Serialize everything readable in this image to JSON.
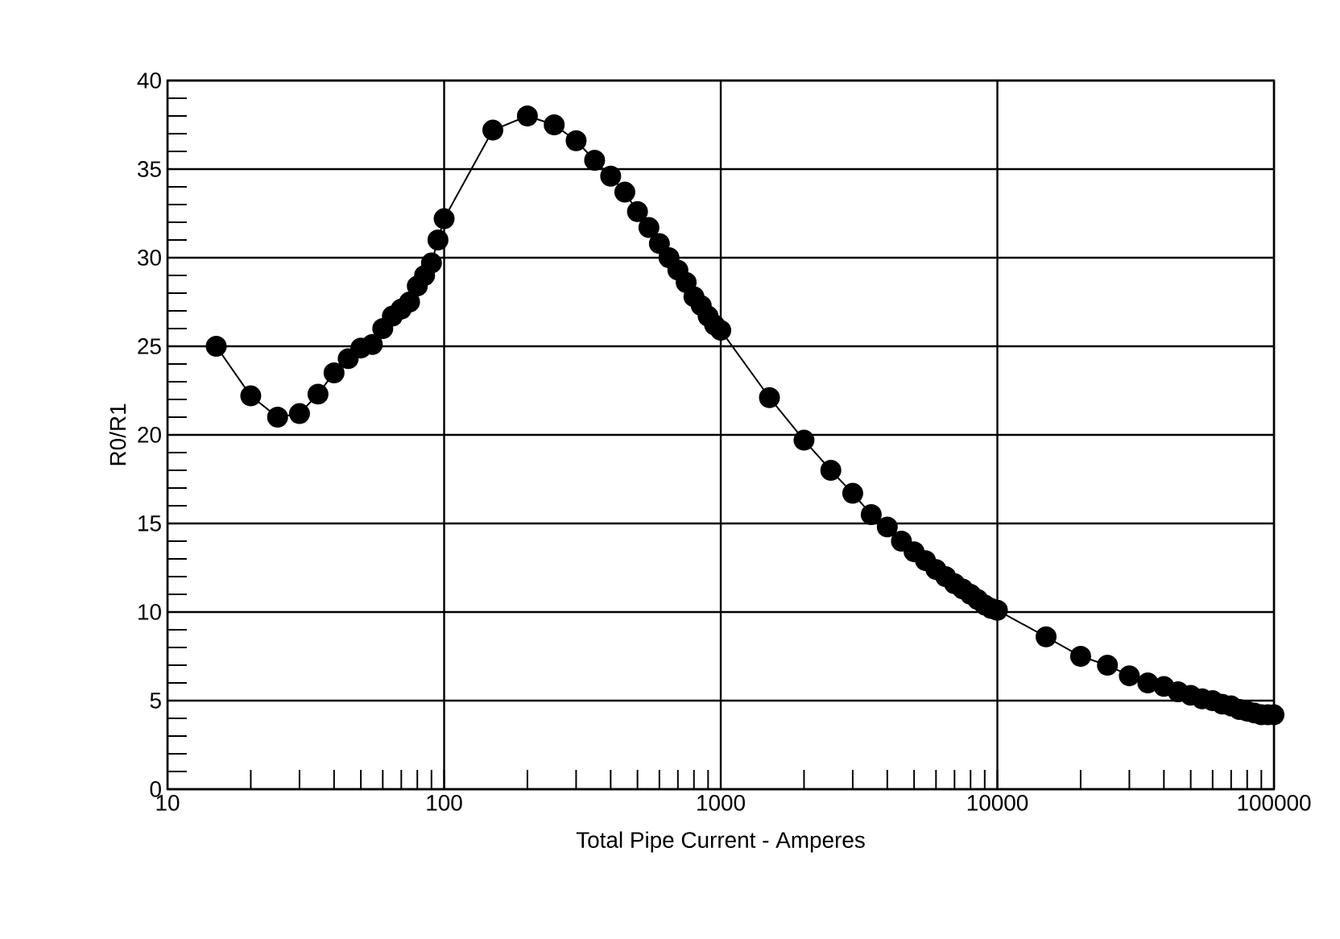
{
  "chart_data": {
    "type": "line",
    "xlabel": "Total Pipe Current - Amperes",
    "ylabel": "R0/R1",
    "log": "x",
    "grid": true,
    "marker": "circle",
    "line_style": "solid",
    "xlim": [
      10,
      100000
    ],
    "xticks": [
      10,
      100,
      1000,
      10000,
      100000
    ],
    "ylim": [
      0,
      40
    ],
    "yticks": [
      0,
      5,
      10,
      15,
      20,
      25,
      30,
      35,
      40
    ],
    "series": [
      {
        "color": "#000000",
        "x": [
          15,
          20,
          25,
          30,
          35,
          40,
          45,
          50,
          55,
          60,
          65,
          70,
          75,
          80,
          85,
          90,
          95,
          100,
          150,
          200,
          250,
          300,
          350,
          400,
          450,
          500,
          550,
          600,
          650,
          700,
          750,
          800,
          850,
          900,
          950,
          1000,
          1500,
          2000,
          2500,
          3000,
          3500,
          4000,
          4500,
          5000,
          5500,
          6000,
          6500,
          7000,
          7500,
          8000,
          8500,
          9000,
          9500,
          10000,
          15000,
          20000,
          25000,
          30000,
          35000,
          40000,
          45000,
          50000,
          55000,
          60000,
          65000,
          70000,
          75000,
          80000,
          85000,
          90000,
          95000,
          100000
        ],
        "values": [
          25,
          22.2,
          21,
          21.2,
          22.3,
          23.5,
          24.3,
          24.9,
          25.1,
          26,
          26.7,
          27.1,
          27.5,
          28.4,
          29,
          29.7,
          31,
          32.2,
          37.2,
          38,
          37.5,
          36.6,
          35.5,
          34.6,
          33.7,
          32.6,
          31.7,
          30.8,
          30,
          29.3,
          28.6,
          27.8,
          27.3,
          26.7,
          26.2,
          25.9,
          22.1,
          19.7,
          18,
          16.7,
          15.5,
          14.8,
          14,
          13.4,
          12.9,
          12.4,
          12,
          11.6,
          11.3,
          11,
          10.7,
          10.4,
          10.2,
          10.1,
          8.6,
          7.5,
          7,
          6.4,
          6,
          5.8,
          5.5,
          5.3,
          5.1,
          5,
          4.8,
          4.7,
          4.5,
          4.4,
          4.3,
          4.2,
          4.2,
          4.2
        ]
      }
    ]
  }
}
